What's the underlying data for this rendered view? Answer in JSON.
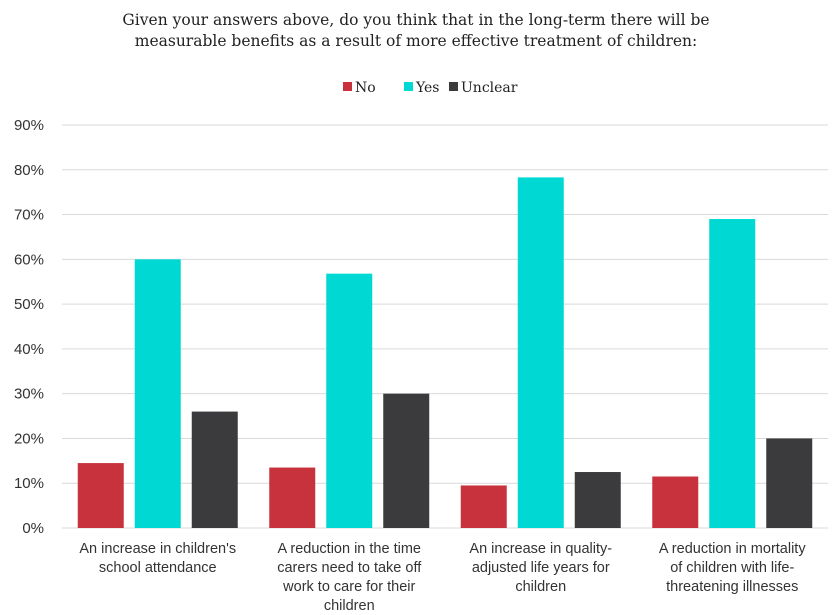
{
  "chart_data": {
    "type": "bar",
    "title_lines": [
      "Given your answers above, do you think that in the long-term there will be",
      "measurable benefits as a result of more effective treatment of children:"
    ],
    "categories": [
      [
        "An increase in children's",
        "school attendance"
      ],
      [
        "A reduction in the time",
        "carers need to take off",
        "work to care for their",
        "children"
      ],
      [
        "An increase in quality-",
        "adjusted life years for",
        "children"
      ],
      [
        "A reduction in mortality",
        "of children with life-",
        "threatening illnesses"
      ]
    ],
    "series": [
      {
        "name": "No",
        "color": "#c8323c",
        "values": [
          14.5,
          13.5,
          9.5,
          11.5
        ]
      },
      {
        "name": "Yes",
        "color": "#00d8d4",
        "values": [
          60,
          56.8,
          78.3,
          69
        ]
      },
      {
        "name": "Unclear",
        "color": "#3b3b3d",
        "values": [
          26,
          30,
          12.5,
          20
        ]
      }
    ],
    "y_ticks": [
      "0%",
      "10%",
      "20%",
      "30%",
      "40%",
      "50%",
      "60%",
      "70%",
      "80%",
      "90%"
    ],
    "ylim": [
      0,
      90
    ],
    "grid": true,
    "legend_position": "top-center"
  }
}
